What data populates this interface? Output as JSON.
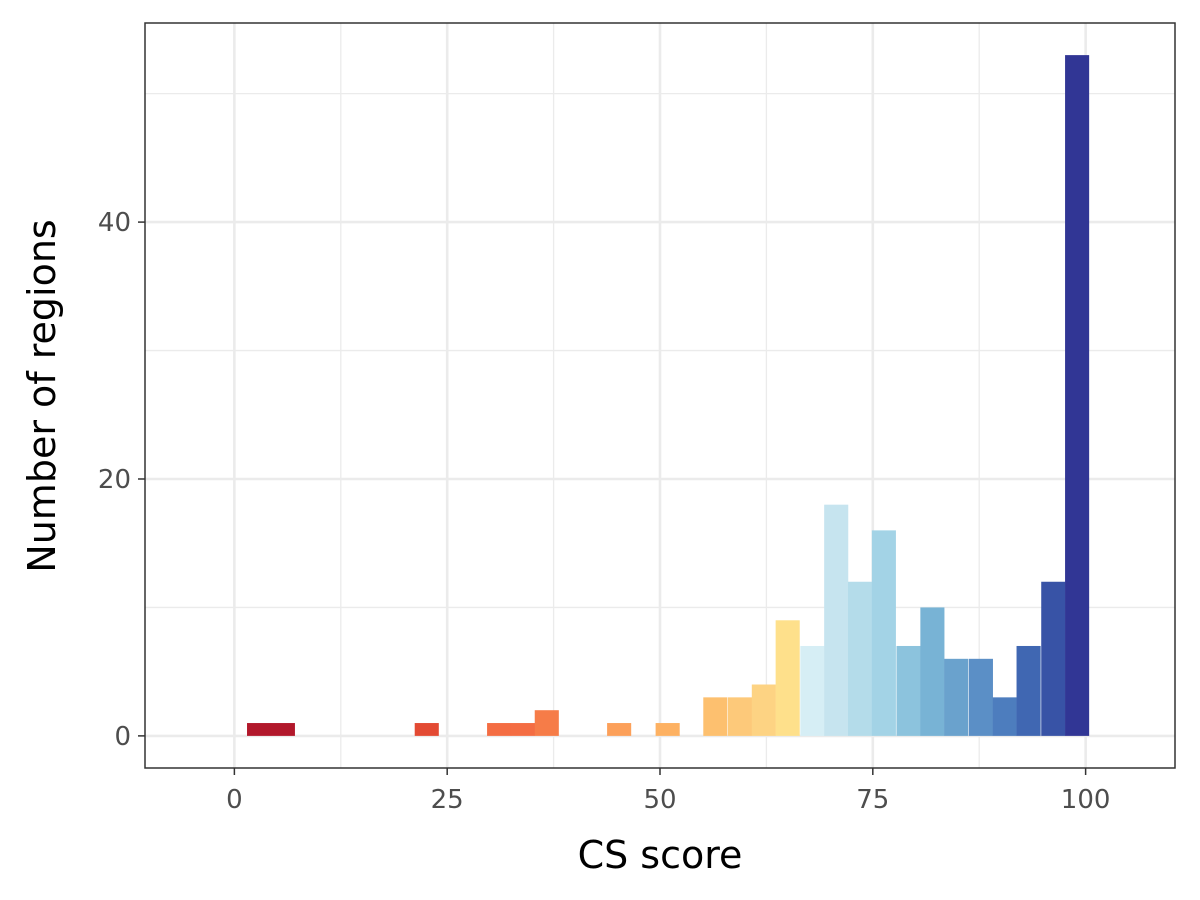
{
  "chart_data": {
    "type": "bar",
    "xlabel": "CS score",
    "ylabel": "Number of regions",
    "xlim": [
      -10.5,
      110.5
    ],
    "ylim": [
      -2.5,
      55.5
    ],
    "x_ticks": [
      0,
      25,
      50,
      75,
      100
    ],
    "y_ticks": [
      0,
      20,
      40
    ],
    "grid": true,
    "legend": "none",
    "bin_width": 2.83,
    "bins": [
      {
        "center": 2.9,
        "count": 1,
        "color": "#b2182b"
      },
      {
        "center": 5.7,
        "count": 1,
        "color": "#b2182b"
      },
      {
        "center": 22.6,
        "count": 1,
        "color": "#e34a33"
      },
      {
        "center": 31.1,
        "count": 1,
        "color": "#f46d43"
      },
      {
        "center": 33.9,
        "count": 1,
        "color": "#f46d43"
      },
      {
        "center": 36.7,
        "count": 2,
        "color": "#f67c48"
      },
      {
        "center": 45.2,
        "count": 1,
        "color": "#fca05a"
      },
      {
        "center": 50.9,
        "count": 1,
        "color": "#fdb162"
      },
      {
        "center": 56.5,
        "count": 3,
        "color": "#fdc06f"
      },
      {
        "center": 59.4,
        "count": 3,
        "color": "#fdc97a"
      },
      {
        "center": 62.2,
        "count": 4,
        "color": "#fdd383"
      },
      {
        "center": 65.0,
        "count": 9,
        "color": "#fee08b"
      },
      {
        "center": 67.9,
        "count": 7,
        "color": "#d6eef5"
      },
      {
        "center": 70.7,
        "count": 18,
        "color": "#c6e4ef"
      },
      {
        "center": 73.5,
        "count": 12,
        "color": "#b4dcea"
      },
      {
        "center": 76.3,
        "count": 16,
        "color": "#a3d3e6"
      },
      {
        "center": 79.2,
        "count": 7,
        "color": "#8cc3dd"
      },
      {
        "center": 82.0,
        "count": 10,
        "color": "#78b3d5"
      },
      {
        "center": 84.8,
        "count": 6,
        "color": "#6aa2cd"
      },
      {
        "center": 87.7,
        "count": 6,
        "color": "#5b8fc6"
      },
      {
        "center": 90.5,
        "count": 3,
        "color": "#4d7dbe"
      },
      {
        "center": 93.3,
        "count": 7,
        "color": "#4067b2"
      },
      {
        "center": 96.2,
        "count": 12,
        "color": "#3853a6"
      },
      {
        "center": 99.0,
        "count": 53,
        "color": "#313695"
      }
    ]
  }
}
